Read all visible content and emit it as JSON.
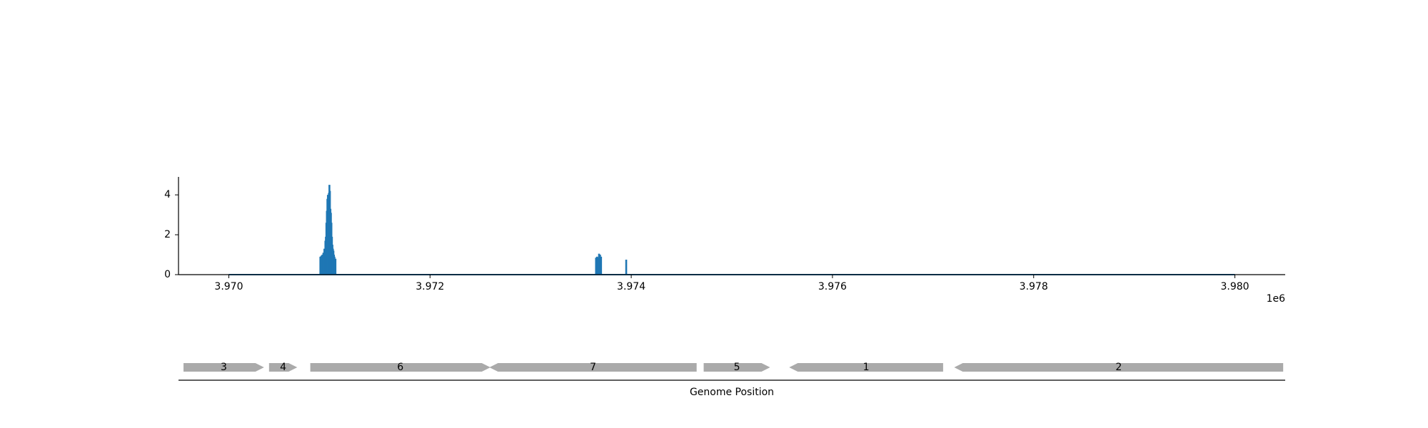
{
  "chart_data": [
    {
      "type": "bar",
      "title": "",
      "xlabel": "",
      "ylabel": "",
      "x_offset_label": "1e6",
      "xlim": [
        3969500,
        3980500
      ],
      "ylim": [
        0,
        4.9
      ],
      "x_ticks": [
        3970000,
        3972000,
        3974000,
        3976000,
        3978000,
        3980000
      ],
      "x_tick_labels": [
        "3.970",
        "3.972",
        "3.974",
        "3.976",
        "3.978",
        "3.980"
      ],
      "y_ticks": [
        0,
        2,
        4
      ],
      "y_tick_labels": [
        "0",
        "2",
        "4"
      ],
      "baseline_range": [
        3970000,
        3980000
      ],
      "color": "#1f77b4",
      "x": [
        3970910,
        3970920,
        3970930,
        3970940,
        3970950,
        3970960,
        3970965,
        3970970,
        3970975,
        3970980,
        3970985,
        3970990,
        3970995,
        3971000,
        3971005,
        3971010,
        3971015,
        3971020,
        3971025,
        3971030,
        3971035,
        3971040,
        3971045,
        3971050,
        3971060,
        3973650,
        3973660,
        3973670,
        3973680,
        3973690,
        3973700,
        3973950
      ],
      "values": [
        0.9,
        0.95,
        1.0,
        1.1,
        1.3,
        1.7,
        1.9,
        2.6,
        3.2,
        3.8,
        4.0,
        3.9,
        4.1,
        4.5,
        4.2,
        3.3,
        3.1,
        2.6,
        1.9,
        1.5,
        1.3,
        1.2,
        1.0,
        0.9,
        0.8,
        0.85,
        0.9,
        0.85,
        1.05,
        1.0,
        0.9,
        0.75
      ]
    },
    {
      "type": "gene-track",
      "xlabel": "Genome Position",
      "color": "#aaaaaa",
      "genes": [
        {
          "label": "3",
          "start": 3969550,
          "end": 3970350,
          "strand": "+"
        },
        {
          "label": "4",
          "start": 3970400,
          "end": 3970680,
          "strand": "+"
        },
        {
          "label": "6",
          "start": 3970810,
          "end": 3972600,
          "strand": "+"
        },
        {
          "label": "7",
          "start": 3972590,
          "end": 3974650,
          "strand": "-"
        },
        {
          "label": "5",
          "start": 3974720,
          "end": 3975380,
          "strand": "+"
        },
        {
          "label": "1",
          "start": 3975570,
          "end": 3977100,
          "strand": "-"
        },
        {
          "label": "2",
          "start": 3977210,
          "end": 3980480,
          "strand": "-"
        }
      ]
    }
  ]
}
